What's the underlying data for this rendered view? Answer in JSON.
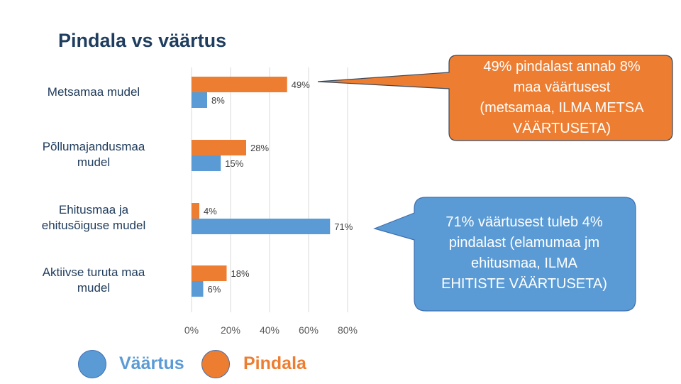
{
  "title": "Pindala vs väärtus",
  "colors": {
    "vaartus": "#5b9bd5",
    "pindala": "#ed7d31",
    "title": "#1f3d5e"
  },
  "chart_data": {
    "type": "bar",
    "orientation": "horizontal",
    "categories": [
      "Metsamaa mudel",
      "Põllumajandusmaa mudel",
      "Ehitusmaa ja ehitusõiguse mudel",
      "Aktiivse turuta maa mudel"
    ],
    "series": [
      {
        "name": "Pindala",
        "color": "#ed7d31",
        "values": [
          49,
          28,
          4,
          18
        ],
        "labels": [
          "49%",
          "28%",
          "4%",
          "18%"
        ]
      },
      {
        "name": "Väärtus",
        "color": "#5b9bd5",
        "values": [
          8,
          15,
          71,
          6
        ],
        "labels": [
          "8%",
          "15%",
          "71%",
          "6%"
        ]
      }
    ],
    "xlim": [
      0,
      80
    ],
    "xticks": [
      "0%",
      "20%",
      "40%",
      "60%",
      "80%"
    ],
    "grid": true,
    "legend": "bottom-left"
  },
  "category_labels": [
    [
      "Metsamaa mudel"
    ],
    [
      "Põllumajandusmaa",
      "mudel"
    ],
    [
      "Ehitusmaa ja",
      "ehitusõiguse mudel"
    ],
    [
      "Aktiivse turuta maa",
      "mudel"
    ]
  ],
  "callouts": {
    "forest": [
      "49% pindalast annab 8%",
      "maa väärtusest",
      "(metsamaa, ILMA  METSA",
      "VÄÄRTUSETA)"
    ],
    "building": [
      "71% väärtusest tuleb 4%",
      "pindalast (elamumaa jm",
      "ehitusmaa, ILMA",
      "EHITISTE VÄÄRTUSETA)"
    ]
  },
  "legend": {
    "vaartus": "Väärtus",
    "pindala": "Pindala"
  }
}
